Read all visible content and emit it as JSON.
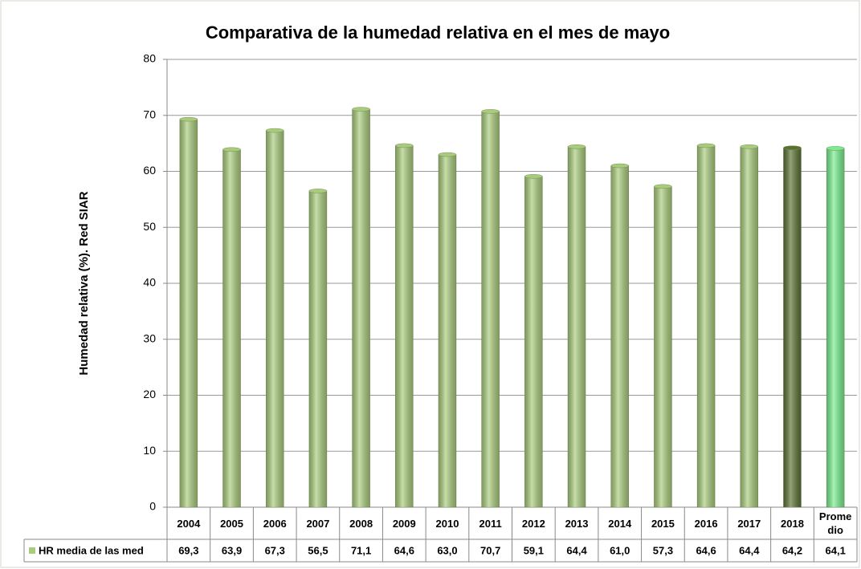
{
  "chart_data": {
    "type": "bar",
    "title": "Comparativa de la humedad relativa en el mes de  mayo",
    "y_label": "Humedad relativa (%). Red SIAR",
    "categories": [
      "2004",
      "2005",
      "2006",
      "2007",
      "2008",
      "2009",
      "2010",
      "2011",
      "2012",
      "2013",
      "2014",
      "2015",
      "2016",
      "2017",
      "2018",
      "Promedio"
    ],
    "series": [
      {
        "name": "HR media de las med",
        "color": "#a9cc7c",
        "colors": [
          "#a9cc7c",
          "#a9cc7c",
          "#a9cc7c",
          "#a9cc7c",
          "#a9cc7c",
          "#a9cc7c",
          "#a9cc7c",
          "#a9cc7c",
          "#a9cc7c",
          "#a9cc7c",
          "#a9cc7c",
          "#a9cc7c",
          "#a9cc7c",
          "#a9cc7c",
          "#5b7131",
          "#78ee8e"
        ],
        "values": [
          69.3,
          63.9,
          67.3,
          56.5,
          71.1,
          64.6,
          63.0,
          70.7,
          59.1,
          64.4,
          61.0,
          57.3,
          64.6,
          64.4,
          64.2,
          64.1
        ],
        "value_labels": [
          "69,3",
          "63,9",
          "67,3",
          "56,5",
          "71,1",
          "64,6",
          "63,0",
          "70,7",
          "59,1",
          "64,4",
          "61,0",
          "57,3",
          "64,6",
          "64,4",
          "64,2",
          "64,1"
        ]
      }
    ],
    "ylim": [
      0,
      80
    ],
    "yticks": [
      0,
      10,
      20,
      30,
      40,
      50,
      60,
      70,
      80
    ],
    "grid": true
  }
}
